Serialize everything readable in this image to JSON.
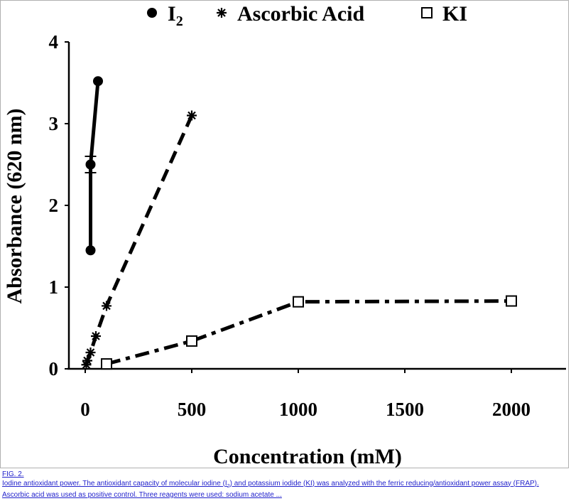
{
  "chart_data": {
    "type": "line",
    "title": "",
    "xlabel": "Concentration (mM)",
    "ylabel": "Absorbance (620 nm)",
    "xlim": [
      0,
      2250
    ],
    "ylim": [
      0,
      4
    ],
    "x_ticks": [
      0,
      500,
      1000,
      1500,
      2000
    ],
    "y_ticks": [
      0,
      1,
      2,
      3,
      4
    ],
    "grid": false,
    "legend_position": "top",
    "series": [
      {
        "name": "I2",
        "legend_label": "I",
        "legend_subscript": "2",
        "marker": "filled-circle",
        "line_style": "solid",
        "color": "#000000",
        "x": [
          25,
          25,
          60
        ],
        "y": [
          1.45,
          2.5,
          3.52
        ],
        "error_bars": [
          {
            "x": 25,
            "y": 2.5,
            "err": 0.1
          }
        ]
      },
      {
        "name": "Ascorbic Acid",
        "marker": "asterisk",
        "line_style": "dashed",
        "color": "#000000",
        "x": [
          5,
          10,
          25,
          50,
          100,
          500
        ],
        "y": [
          0.05,
          0.1,
          0.2,
          0.4,
          0.77,
          3.1
        ]
      },
      {
        "name": "KI",
        "marker": "open-square",
        "line_style": "dash-dot",
        "color": "#000000",
        "x": [
          100,
          500,
          1000,
          2000
        ],
        "y": [
          0.06,
          0.34,
          0.82,
          0.83
        ]
      }
    ]
  },
  "caption": {
    "fig_label": "FIG. 2.",
    "line1_pre": "Iodine antioxidant power. The antioxidant capacity of molecular iodine (I",
    "line1_sub": "2",
    "line1_post": ") and potassium iodide (KI) was analyzed with the ferric reducing/antioxidant power assay (FRAP).",
    "line2": "Ascorbic acid was used as positive control. Three reagents were used: sodium acetate ..."
  }
}
